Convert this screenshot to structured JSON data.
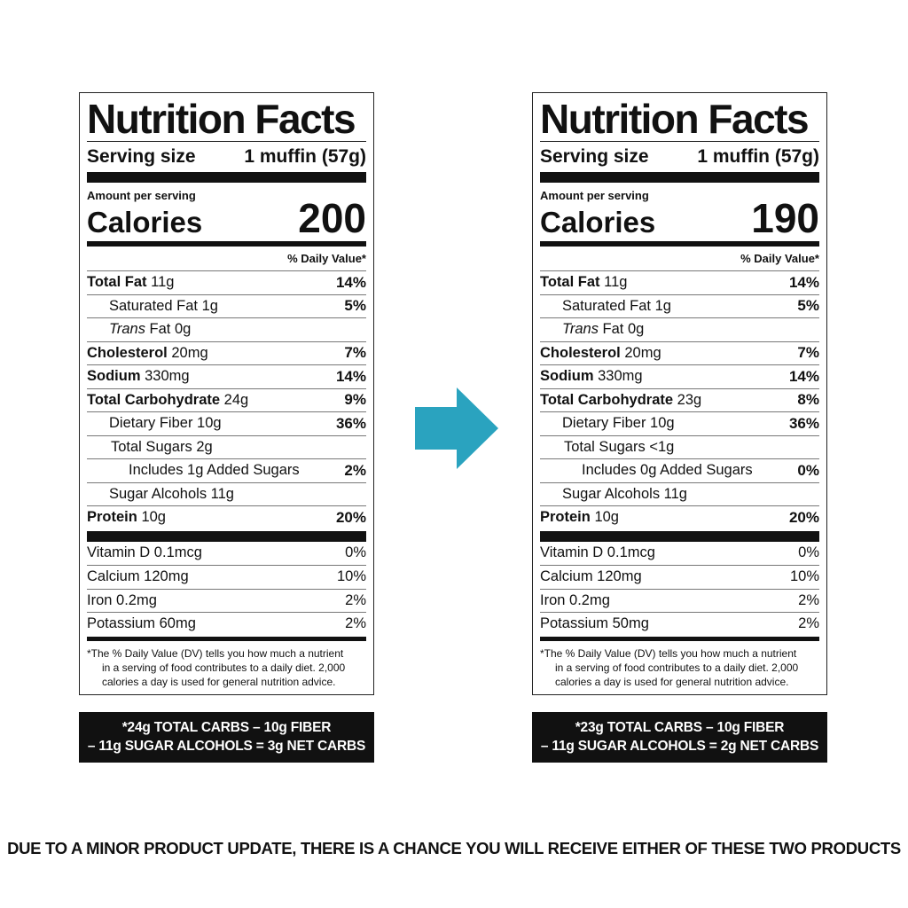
{
  "labels": [
    {
      "title": "Nutrition Facts",
      "serving_label": "Serving size",
      "serving_value": "1 muffin (57g)",
      "amount_per_serving": "Amount per serving",
      "calories_label": "Calories",
      "calories_value": "200",
      "dv_header": "% Daily Value*",
      "nutrients": [
        {
          "name": "Total Fat",
          "amount": "11g",
          "pct": "14%"
        },
        {
          "name": "Saturated Fat",
          "amount": "1g",
          "pct": "5%"
        },
        {
          "name_italic": "Trans",
          "name": "Fat",
          "amount": "0g",
          "pct": ""
        },
        {
          "name": "Cholesterol",
          "amount": "20mg",
          "pct": "7%"
        },
        {
          "name": "Sodium",
          "amount": "330mg",
          "pct": "14%"
        },
        {
          "name": "Total Carbohydrate",
          "amount": "24g",
          "pct": "9%"
        },
        {
          "name": "Dietary Fiber",
          "amount": "10g",
          "pct": "36%"
        },
        {
          "name": "Total Sugars",
          "amount": "2g",
          "pct": ""
        },
        {
          "name": "Includes 1g Added Sugars",
          "amount": "",
          "pct": "2%"
        },
        {
          "name": "Sugar Alcohols",
          "amount": "11g",
          "pct": ""
        },
        {
          "name": "Protein",
          "amount": "10g",
          "pct": "20%"
        }
      ],
      "vitamins": [
        {
          "name": "Vitamin D 0.1mcg",
          "pct": "0%"
        },
        {
          "name": "Calcium 120mg",
          "pct": "10%"
        },
        {
          "name": "Iron 0.2mg",
          "pct": "2%"
        },
        {
          "name": "Potassium 60mg",
          "pct": "2%"
        }
      ],
      "footnote_1": "*The % Daily Value (DV) tells you how much a nutrient",
      "footnote_2": "in a serving of food contributes to a daily diet. 2,000",
      "footnote_3": "calories a day is used for general nutrition advice.",
      "net_line_1": "*24g TOTAL CARBS – 10g FIBER",
      "net_line_2": "– 11g SUGAR ALCOHOLS = 3g NET CARBS"
    },
    {
      "title": "Nutrition Facts",
      "serving_label": "Serving size",
      "serving_value": "1 muffin (57g)",
      "amount_per_serving": "Amount per serving",
      "calories_label": "Calories",
      "calories_value": "190",
      "dv_header": "% Daily Value*",
      "nutrients": [
        {
          "name": "Total Fat",
          "amount": "11g",
          "pct": "14%"
        },
        {
          "name": "Saturated Fat",
          "amount": "1g",
          "pct": "5%"
        },
        {
          "name_italic": "Trans",
          "name": "Fat",
          "amount": "0g",
          "pct": ""
        },
        {
          "name": "Cholesterol",
          "amount": "20mg",
          "pct": "7%"
        },
        {
          "name": "Sodium",
          "amount": "330mg",
          "pct": "14%"
        },
        {
          "name": "Total Carbohydrate",
          "amount": "23g",
          "pct": "8%"
        },
        {
          "name": "Dietary Fiber",
          "amount": "10g",
          "pct": "36%"
        },
        {
          "name": "Total Sugars",
          "amount": "<1g",
          "pct": ""
        },
        {
          "name": "Includes 0g Added Sugars",
          "amount": "",
          "pct": "0%"
        },
        {
          "name": "Sugar Alcohols",
          "amount": "11g",
          "pct": ""
        },
        {
          "name": "Protein",
          "amount": "10g",
          "pct": "20%"
        }
      ],
      "vitamins": [
        {
          "name": "Vitamin D 0.1mcg",
          "pct": "0%"
        },
        {
          "name": "Calcium 120mg",
          "pct": "10%"
        },
        {
          "name": "Iron 0.2mg",
          "pct": "2%"
        },
        {
          "name": "Potassium 50mg",
          "pct": "2%"
        }
      ],
      "footnote_1": "*The % Daily Value (DV) tells you how much a nutrient",
      "footnote_2": "in a serving of food contributes to a daily diet. 2,000",
      "footnote_3": "calories a day is used for general nutrition advice.",
      "net_line_1": "*23g TOTAL CARBS – 10g FIBER",
      "net_line_2": "– 11g SUGAR ALCOHOLS = 2g NET CARBS"
    }
  ],
  "arrow": {
    "icon": "arrow-right-icon",
    "color": "#2aa3bf"
  },
  "disclaimer": "DUE TO A MINOR PRODUCT UPDATE, THERE IS A CHANCE YOU WILL RECEIVE EITHER OF THESE TWO PRODUCTS"
}
